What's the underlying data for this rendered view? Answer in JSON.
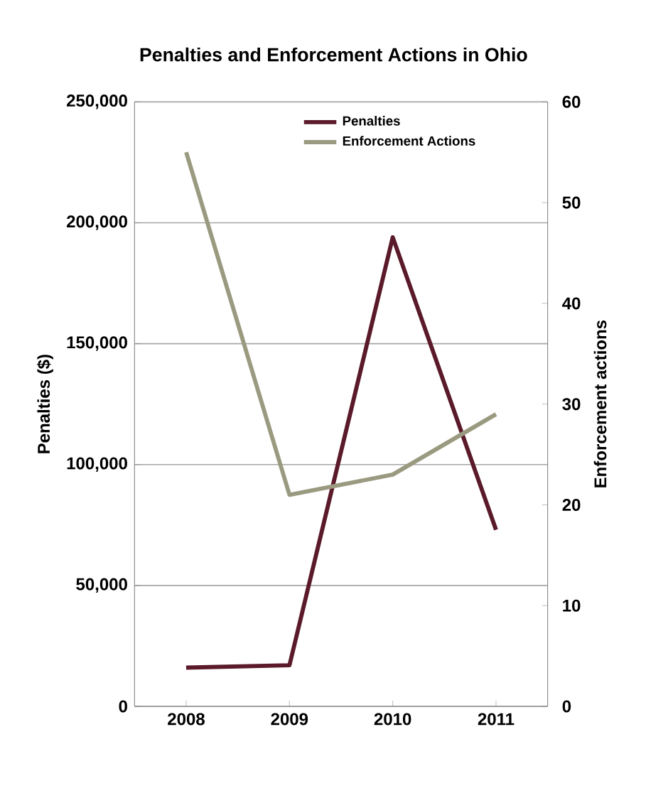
{
  "chart_data": {
    "type": "line",
    "title": "Penalties and Enforcement Actions in Ohio",
    "ylabel": "Penalties ($)",
    "y2label": "Enforcement actions",
    "categories": [
      "2008",
      "2009",
      "2010",
      "2011"
    ],
    "series": [
      {
        "name": "Penalties",
        "color": "#5a1a2a",
        "values": [
          16000,
          17000,
          194000,
          73000
        ]
      },
      {
        "name": "Enforcement Actions",
        "color": "#9a9a80",
        "values": [
          55,
          21,
          23,
          29
        ],
        "axis": "y2"
      }
    ],
    "ylim": [
      0,
      250000
    ],
    "yticks": [
      {
        "value": 0,
        "label": "0"
      },
      {
        "value": 50000,
        "label": "50,000"
      },
      {
        "value": 100000,
        "label": "100,000"
      },
      {
        "value": 150000,
        "label": "150,000"
      },
      {
        "value": 200000,
        "label": "200,000"
      },
      {
        "value": 250000,
        "label": "250,000"
      }
    ],
    "y2lim": [
      0,
      60
    ],
    "y2ticks": [
      0,
      10,
      20,
      30,
      40,
      50,
      60
    ],
    "grid": "y",
    "legend": "top",
    "marker": "none",
    "line_style": "solid"
  }
}
